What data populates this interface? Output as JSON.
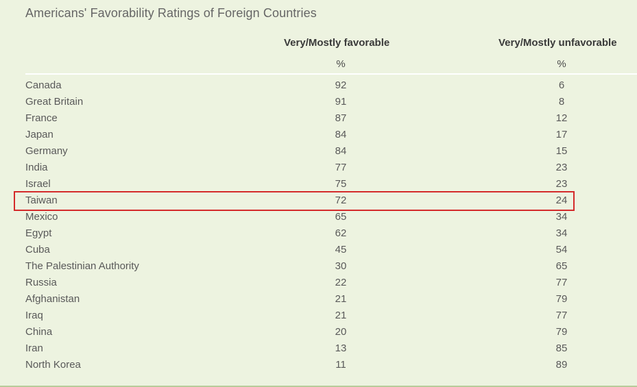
{
  "chart_data": {
    "type": "table",
    "title": "Americans' Favorability Ratings of Foreign Countries",
    "columns": [
      "Very/Mostly favorable",
      "Very/Mostly unfavorable"
    ],
    "units": [
      "%",
      "%"
    ],
    "highlighted_row": "Taiwan",
    "highlight_color": "#d42a2a",
    "rows": [
      {
        "country": "Canada",
        "favorable": "92",
        "unfavorable": "6"
      },
      {
        "country": "Great Britain",
        "favorable": "91",
        "unfavorable": "8"
      },
      {
        "country": "France",
        "favorable": "87",
        "unfavorable": "12"
      },
      {
        "country": "Japan",
        "favorable": "84",
        "unfavorable": "17"
      },
      {
        "country": "Germany",
        "favorable": "84",
        "unfavorable": "15"
      },
      {
        "country": "India",
        "favorable": "77",
        "unfavorable": "23"
      },
      {
        "country": "Israel",
        "favorable": "75",
        "unfavorable": "23"
      },
      {
        "country": "Taiwan",
        "favorable": "72",
        "unfavorable": "24"
      },
      {
        "country": "Mexico",
        "favorable": "65",
        "unfavorable": "34"
      },
      {
        "country": "Egypt",
        "favorable": "62",
        "unfavorable": "34"
      },
      {
        "country": "Cuba",
        "favorable": "45",
        "unfavorable": "54"
      },
      {
        "country": "The Palestinian Authority",
        "favorable": "30",
        "unfavorable": "65"
      },
      {
        "country": "Russia",
        "favorable": "22",
        "unfavorable": "77"
      },
      {
        "country": "Afghanistan",
        "favorable": "21",
        "unfavorable": "79"
      },
      {
        "country": "Iraq",
        "favorable": "21",
        "unfavorable": "77"
      },
      {
        "country": "China",
        "favorable": "20",
        "unfavorable": "79"
      },
      {
        "country": "Iran",
        "favorable": "13",
        "unfavorable": "85"
      },
      {
        "country": "North Korea",
        "favorable": "11",
        "unfavorable": "89"
      }
    ]
  }
}
